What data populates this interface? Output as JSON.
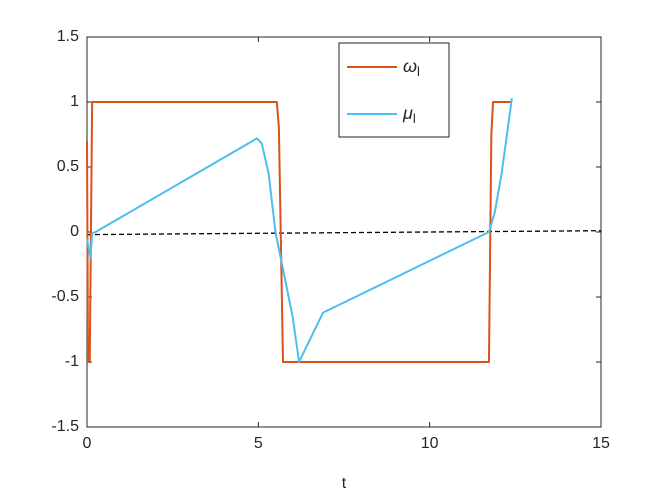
{
  "chart_data": {
    "type": "line",
    "xlabel": "t",
    "xlim": [
      0,
      15
    ],
    "xticks": [
      0,
      5,
      10,
      15
    ],
    "ylim": [
      -1.5,
      1.5
    ],
    "yticks": [
      -1.5,
      -1,
      -0.5,
      0,
      0.5,
      1,
      1.5
    ],
    "legend": "north",
    "series": [
      {
        "name": "ωl",
        "color": "#d95319",
        "x": [
          0,
          0.03,
          0.08,
          0.15,
          0.2,
          5.54,
          5.6,
          5.72,
          5.8,
          11.73,
          11.8,
          11.85,
          11.9,
          12.4
        ],
        "values": [
          0.7,
          -1,
          -1,
          1,
          1,
          1,
          0.8,
          -1,
          -1,
          -1,
          0.75,
          1,
          1,
          1
        ]
      },
      {
        "name": "μl",
        "color": "#4dbeee",
        "x": [
          0,
          0.1,
          0.15,
          0.25,
          4.96,
          5.1,
          5.3,
          5.5,
          6.0,
          6.19,
          6.5,
          6.89,
          11.73,
          11.9,
          12.1,
          12.4
        ],
        "values": [
          -0.05,
          -0.2,
          -0.01,
          0,
          0.72,
          0.68,
          0.45,
          0,
          -0.65,
          -1,
          -0.83,
          -0.62,
          0,
          0.15,
          0.45,
          1.03
        ]
      }
    ],
    "reference_line": {
      "color": "#000000",
      "style": "dashed",
      "x": [
        0,
        15
      ],
      "values": [
        -0.02,
        0.01
      ]
    }
  }
}
